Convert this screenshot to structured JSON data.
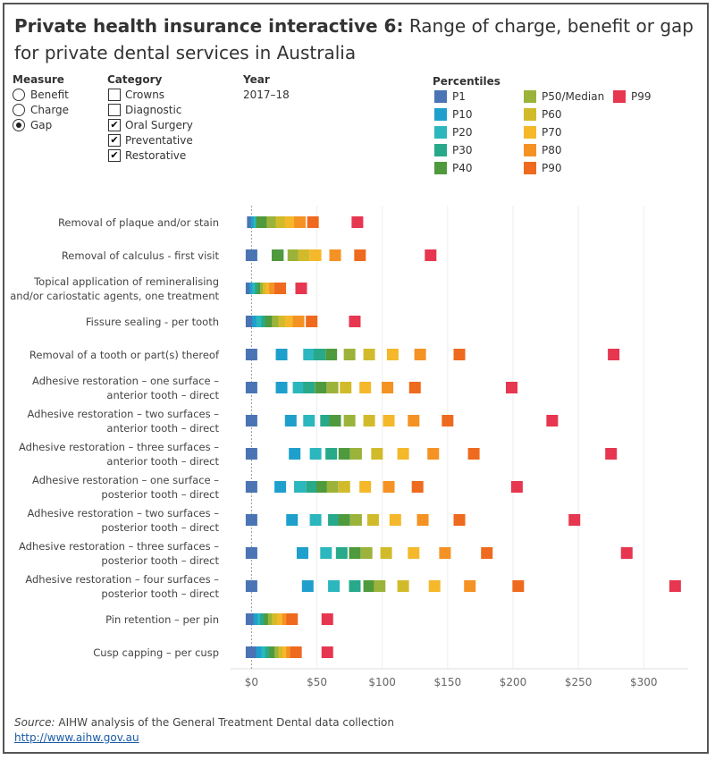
{
  "header": {
    "title_bold": "Private health insurance interactive 6:",
    "title_rest": "Range of charge, benefit or gap for private dental services in Australia"
  },
  "controls": {
    "measure": {
      "label": "Measure",
      "options": [
        {
          "label": "Benefit",
          "selected": false
        },
        {
          "label": "Charge",
          "selected": false
        },
        {
          "label": "Gap",
          "selected": true
        }
      ]
    },
    "category": {
      "label": "Category",
      "options": [
        {
          "label": "Crowns",
          "checked": false
        },
        {
          "label": "Diagnostic",
          "checked": false
        },
        {
          "label": "Oral Surgery",
          "checked": true
        },
        {
          "label": "Preventative",
          "checked": true
        },
        {
          "label": "Restorative",
          "checked": true
        }
      ]
    },
    "year": {
      "label": "Year",
      "value": "2017–18"
    }
  },
  "chart_data": {
    "type": "dot",
    "legend_title": "Percentiles",
    "categories": [
      "Removal of plaque and/or stain",
      "Removal of calculus - first visit",
      "Topical application of remineralising\nand/or cariostatic agents, one treatment",
      "Fissure sealing - per tooth",
      "Removal of a tooth or part(s) thereof",
      "Adhesive restoration – one surface –\nanterior tooth – direct",
      "Adhesive restoration – two surfaces –\nanterior tooth – direct",
      "Adhesive restoration – three surfaces –\nanterior tooth – direct",
      "Adhesive restoration – one surface –\nposterior tooth – direct",
      "Adhesive restoration – two surfaces –\nposterior tooth – direct",
      "Adhesive restoration – three surfaces –\nposterior tooth – direct",
      "Adhesive restoration – four surfaces –\nposterior tooth – direct",
      "Pin retention – per pin",
      "Cusp capping – per cusp"
    ],
    "series": [
      {
        "name": "P1",
        "color": "#4a74b4",
        "values": [
          1,
          0,
          0,
          0,
          0,
          0,
          0,
          0,
          0,
          0,
          0,
          0,
          0,
          0
        ]
      },
      {
        "name": "P10",
        "color": "#1f9fcb",
        "values": [
          4,
          20,
          3,
          5,
          23,
          23,
          30,
          33,
          22,
          31,
          39,
          43,
          6,
          8
        ]
      },
      {
        "name": "P20",
        "color": "#2cb6bd",
        "values": [
          6,
          20,
          5,
          8,
          44,
          36,
          44,
          49,
          37,
          49,
          57,
          63,
          9,
          12
        ]
      },
      {
        "name": "P30",
        "color": "#27a98a",
        "values": [
          8,
          20,
          7,
          12,
          52,
          44,
          57,
          61,
          46,
          63,
          69,
          79,
          11,
          15
        ]
      },
      {
        "name": "P40",
        "color": "#4f9a3c",
        "values": [
          8,
          20,
          9,
          15,
          61,
          53,
          64,
          71,
          54,
          71,
          79,
          90,
          14,
          18
        ]
      },
      {
        "name": "P50/Median",
        "color": "#9bb33a",
        "values": [
          16,
          32,
          11,
          20,
          75,
          62,
          75,
          80,
          62,
          80,
          88,
          98,
          17,
          22
        ]
      },
      {
        "name": "P60",
        "color": "#d2bb2b",
        "values": [
          23,
          40,
          13,
          25,
          90,
          72,
          90,
          96,
          71,
          93,
          103,
          116,
          20,
          25
        ]
      },
      {
        "name": "P70",
        "color": "#f5b82a",
        "values": [
          30,
          49,
          15,
          30,
          108,
          87,
          105,
          116,
          87,
          110,
          124,
          140,
          24,
          28
        ]
      },
      {
        "name": "P80",
        "color": "#f59224",
        "values": [
          37,
          64,
          18,
          36,
          129,
          104,
          124,
          139,
          105,
          131,
          148,
          167,
          28,
          31
        ]
      },
      {
        "name": "P90",
        "color": "#ee6a1e",
        "values": [
          47,
          83,
          22,
          46,
          159,
          125,
          150,
          170,
          127,
          159,
          180,
          204,
          31,
          34
        ]
      },
      {
        "name": "P99",
        "color": "#e7364f",
        "values": [
          81,
          137,
          38,
          79,
          277,
          199,
          230,
          275,
          203,
          247,
          287,
          324,
          58,
          58
        ]
      }
    ],
    "xlim": [
      -16,
      334
    ],
    "xticks": [
      {
        "value": 0,
        "label": "$0"
      },
      {
        "value": 50,
        "label": "$50"
      },
      {
        "value": 100,
        "label": "$100"
      },
      {
        "value": 150,
        "label": "$150"
      },
      {
        "value": 200,
        "label": "$200"
      },
      {
        "value": 250,
        "label": "$250"
      },
      {
        "value": 300,
        "label": "$300"
      }
    ],
    "grid": true
  },
  "footer": {
    "source_label": "Source:",
    "source_text": "AIHW analysis of the General Treatment Dental data collection",
    "link": "http://www.aihw.gov.au"
  }
}
